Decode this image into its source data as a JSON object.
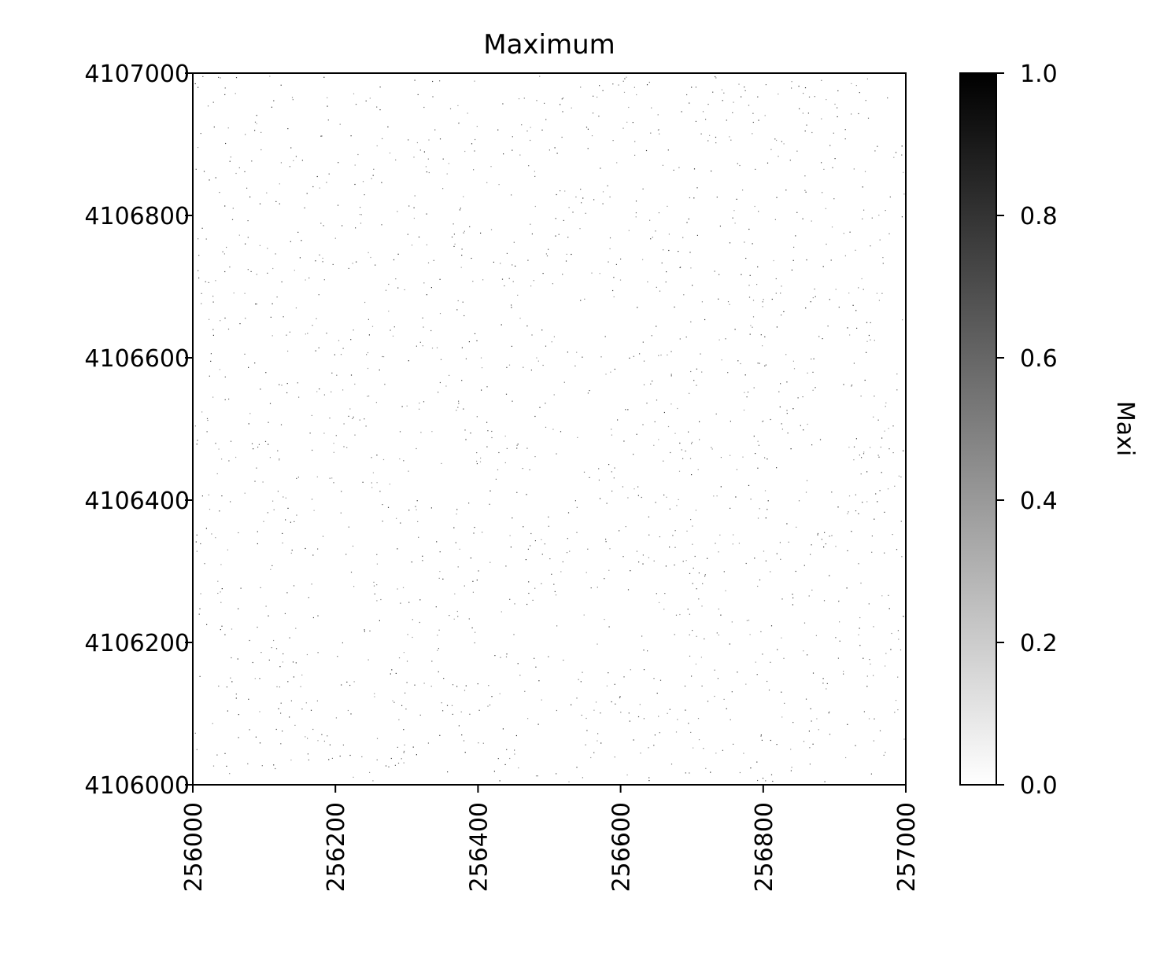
{
  "chart_data": {
    "type": "heatmap",
    "title": "Maximum",
    "xlabel": "",
    "ylabel": "",
    "xlim": [
      256000,
      257000
    ],
    "ylim": [
      4106000,
      4107000
    ],
    "x_ticks": [
      "256000",
      "256200",
      "256400",
      "256600",
      "256800",
      "257000"
    ],
    "y_ticks": [
      "4106000",
      "4106200",
      "4106400",
      "4106600",
      "4106800",
      "4107000"
    ],
    "colormap": "Greys",
    "colorbar": {
      "label": "Maxi",
      "range": [
        0.0,
        1.0
      ],
      "ticks": [
        "0.0",
        "0.2",
        "0.4",
        "0.6",
        "0.8",
        "1.0"
      ]
    },
    "values_summary": "Binary raster: nearly all cells 0.0 (white) with sparse scattered cells at 1.0 (black)",
    "grid": false,
    "legend": "none"
  }
}
